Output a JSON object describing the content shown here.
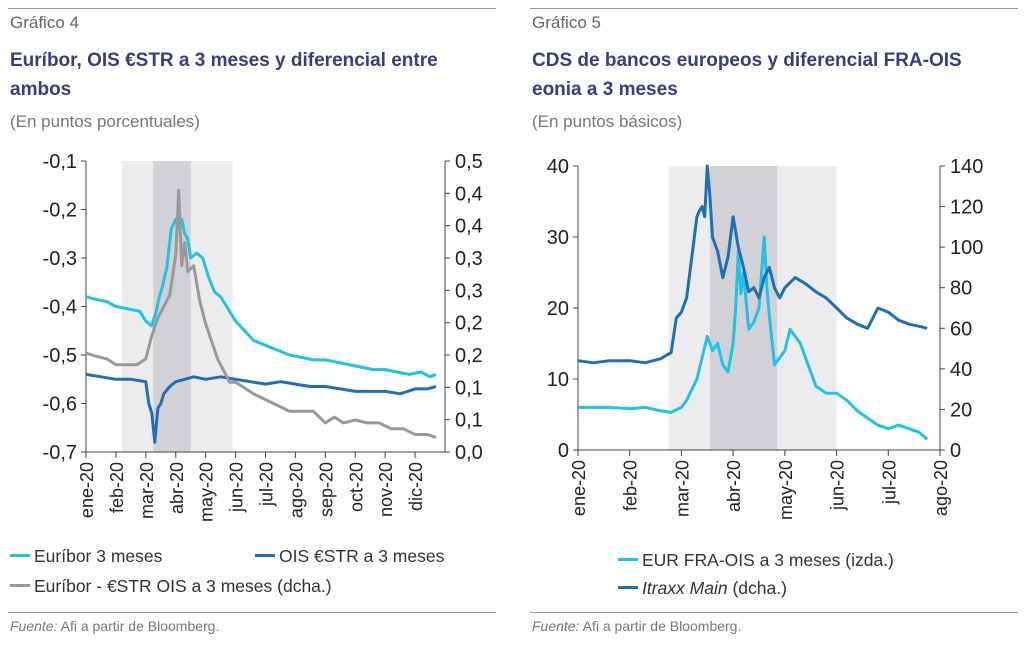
{
  "panels": [
    {
      "label": "Gráfico 4",
      "title": "Euríbor, OIS €STR a 3 meses y diferencial entre ambos",
      "subtitle": "(En puntos porcentuales)",
      "source_label": "Fuente:",
      "source_text": "Afi a partir de Bloomberg.",
      "legend": [
        "Euríbor  3 meses",
        "OIS €STR a 3 meses",
        "Euríbor - €STR OIS a 3 meses (dcha.)"
      ]
    },
    {
      "label": "Gráfico 5",
      "title": "CDS de bancos europeos y diferencial FRA-OIS eonia a 3 meses",
      "subtitle": "(En puntos básicos)",
      "source_label": "Fuente:",
      "source_text": "Afi a partir de Bloomberg.",
      "legend_a": "EUR FRA-OIS a 3 meses (izda.)",
      "legend_b_italic": "Itraxx Main",
      "legend_b_rest": " (dcha.)"
    }
  ],
  "chart_data": [
    {
      "type": "line",
      "x_ticks": [
        "ene-20",
        "feb-20",
        "mar-20",
        "abr-20",
        "may-20",
        "jun-20",
        "jul-20",
        "ago-20",
        "sep-20",
        "oct-20",
        "nov-20",
        "dic-20"
      ],
      "y_left": {
        "min": -0.7,
        "max": -0.1,
        "ticks": [
          "-0,1",
          "-0,2",
          "-0,3",
          "-0,4",
          "-0,5",
          "-0,6",
          "-0,7"
        ]
      },
      "y_right": {
        "min": 0.0,
        "max": 0.5,
        "ticks": [
          "0,5",
          "0,4",
          "0,4",
          "0,3",
          "0,3",
          "0,2",
          "0,2",
          "0,1",
          "0,1",
          "0,0"
        ]
      },
      "shaded": {
        "light": [
          1.2,
          4.9
        ],
        "dark": [
          2.25,
          3.5
        ]
      },
      "colors": {
        "euribor": "#1ec3e6",
        "ois": "#1f6fb6",
        "spread": "#999999",
        "shade_light": "#ececee",
        "shade_dark": "#d2d2d6"
      },
      "series": [
        {
          "name": "Euríbor  3 meses",
          "axis": "left",
          "x": [
            0,
            0.3,
            0.7,
            1.0,
            1.4,
            1.8,
            2.0,
            2.2,
            2.35,
            2.45,
            2.55,
            2.7,
            2.85,
            3.0,
            3.1,
            3.2,
            3.3,
            3.4,
            3.5,
            3.7,
            3.9,
            4.1,
            4.3,
            4.5,
            4.7,
            5.0,
            5.3,
            5.6,
            6.0,
            6.4,
            6.8,
            7.2,
            7.6,
            8.0,
            8.4,
            8.8,
            9.2,
            9.6,
            10.0,
            10.4,
            10.8,
            11.2,
            11.5,
            11.7
          ],
          "y": [
            -0.38,
            -0.385,
            -0.39,
            -0.4,
            -0.405,
            -0.41,
            -0.43,
            -0.44,
            -0.41,
            -0.38,
            -0.36,
            -0.32,
            -0.24,
            -0.22,
            -0.24,
            -0.22,
            -0.25,
            -0.26,
            -0.3,
            -0.29,
            -0.3,
            -0.34,
            -0.37,
            -0.38,
            -0.4,
            -0.43,
            -0.45,
            -0.47,
            -0.48,
            -0.49,
            -0.5,
            -0.505,
            -0.51,
            -0.51,
            -0.515,
            -0.52,
            -0.525,
            -0.53,
            -0.53,
            -0.535,
            -0.54,
            -0.535,
            -0.545,
            -0.54
          ]
        },
        {
          "name": "OIS €STR a 3 meses",
          "axis": "left",
          "x": [
            0,
            0.5,
            1.0,
            1.5,
            2.0,
            2.1,
            2.2,
            2.3,
            2.4,
            2.5,
            2.6,
            2.8,
            3.0,
            3.3,
            3.6,
            4.0,
            4.5,
            5.0,
            5.5,
            6.0,
            6.5,
            7.0,
            7.5,
            8.0,
            8.5,
            9.0,
            9.5,
            10.0,
            10.5,
            11.0,
            11.4,
            11.7
          ],
          "y": [
            -0.54,
            -0.545,
            -0.55,
            -0.55,
            -0.555,
            -0.6,
            -0.62,
            -0.68,
            -0.61,
            -0.6,
            -0.58,
            -0.565,
            -0.555,
            -0.55,
            -0.545,
            -0.55,
            -0.545,
            -0.55,
            -0.555,
            -0.56,
            -0.555,
            -0.56,
            -0.565,
            -0.565,
            -0.57,
            -0.575,
            -0.575,
            -0.575,
            -0.58,
            -0.57,
            -0.57,
            -0.565
          ]
        },
        {
          "name": "Euríbor - €STR OIS a 3 meses (dcha.)",
          "axis": "right",
          "x": [
            0,
            0.3,
            0.7,
            1.0,
            1.3,
            1.7,
            2.0,
            2.2,
            2.4,
            2.6,
            2.8,
            3.0,
            3.1,
            3.2,
            3.3,
            3.4,
            3.6,
            3.8,
            4.0,
            4.2,
            4.4,
            4.6,
            4.8,
            5.0,
            5.3,
            5.6,
            6.0,
            6.4,
            6.8,
            7.2,
            7.6,
            8.0,
            8.3,
            8.6,
            9.0,
            9.4,
            9.8,
            10.2,
            10.6,
            11.0,
            11.4,
            11.7
          ],
          "y": [
            0.17,
            0.165,
            0.16,
            0.15,
            0.15,
            0.15,
            0.16,
            0.2,
            0.23,
            0.25,
            0.27,
            0.34,
            0.45,
            0.32,
            0.36,
            0.31,
            0.32,
            0.26,
            0.22,
            0.19,
            0.16,
            0.14,
            0.12,
            0.12,
            0.11,
            0.1,
            0.09,
            0.08,
            0.07,
            0.07,
            0.07,
            0.05,
            0.06,
            0.05,
            0.055,
            0.05,
            0.05,
            0.04,
            0.04,
            0.03,
            0.03,
            0.025
          ]
        }
      ]
    },
    {
      "type": "line",
      "x_ticks": [
        "ene-20",
        "feb-20",
        "mar-20",
        "abr-20",
        "may-20",
        "jun-20",
        "jul-20",
        "ago-20"
      ],
      "y_left": {
        "min": 0,
        "max": 40,
        "ticks": [
          "40",
          "30",
          "20",
          "10",
          "0"
        ]
      },
      "y_right": {
        "min": 0,
        "max": 140,
        "ticks": [
          "140",
          "120",
          "100",
          "80",
          "60",
          "40",
          "20",
          "0"
        ]
      },
      "shaded": {
        "light": [
          1.75,
          5.0
        ],
        "dark": [
          2.55,
          3.85
        ]
      },
      "colors": {
        "fraois": "#1ec3e6",
        "itraxx": "#1f6fb6",
        "shade_light": "#ececee",
        "shade_dark": "#d2d2d6"
      },
      "series": [
        {
          "name": "EUR FRA-OIS a 3 meses (izda.)",
          "axis": "left",
          "x": [
            0,
            0.3,
            0.6,
            1.0,
            1.3,
            1.6,
            1.8,
            2.0,
            2.1,
            2.2,
            2.3,
            2.4,
            2.5,
            2.6,
            2.7,
            2.8,
            2.9,
            3.0,
            3.05,
            3.1,
            3.15,
            3.2,
            3.3,
            3.4,
            3.5,
            3.6,
            3.65,
            3.7,
            3.8,
            3.9,
            4.0,
            4.1,
            4.2,
            4.3,
            4.4,
            4.6,
            4.8,
            5.0,
            5.2,
            5.4,
            5.6,
            5.8,
            6.0,
            6.2,
            6.4,
            6.6,
            6.75
          ],
          "y": [
            6,
            6,
            6,
            5.8,
            6,
            5.5,
            5.3,
            6,
            7,
            8.5,
            10,
            13,
            16,
            14,
            15,
            12,
            11,
            15,
            20,
            28,
            22,
            25,
            17,
            18,
            20,
            30,
            23,
            19,
            12,
            13,
            14,
            17,
            16,
            15,
            13,
            9,
            8,
            8,
            7,
            5.5,
            4.5,
            3.5,
            3,
            3.5,
            3,
            2.5,
            1.5
          ]
        },
        {
          "name": "Itraxx Main (dcha.)",
          "axis": "right",
          "x": [
            0,
            0.3,
            0.6,
            1.0,
            1.3,
            1.6,
            1.8,
            1.9,
            2.0,
            2.1,
            2.2,
            2.3,
            2.35,
            2.4,
            2.45,
            2.5,
            2.55,
            2.6,
            2.7,
            2.8,
            2.9,
            3.0,
            3.1,
            3.2,
            3.3,
            3.4,
            3.5,
            3.6,
            3.7,
            3.8,
            3.9,
            4.0,
            4.2,
            4.4,
            4.6,
            4.8,
            5.0,
            5.2,
            5.4,
            5.6,
            5.8,
            6.0,
            6.2,
            6.4,
            6.6,
            6.75
          ],
          "y": [
            44,
            43,
            44,
            44,
            43,
            45,
            48,
            65,
            68,
            75,
            95,
            115,
            118,
            120,
            115,
            140,
            125,
            105,
            98,
            85,
            95,
            115,
            100,
            90,
            78,
            80,
            75,
            85,
            90,
            80,
            75,
            80,
            85,
            82,
            78,
            75,
            70,
            65,
            62,
            60,
            70,
            68,
            64,
            62,
            61,
            60
          ]
        }
      ]
    }
  ]
}
